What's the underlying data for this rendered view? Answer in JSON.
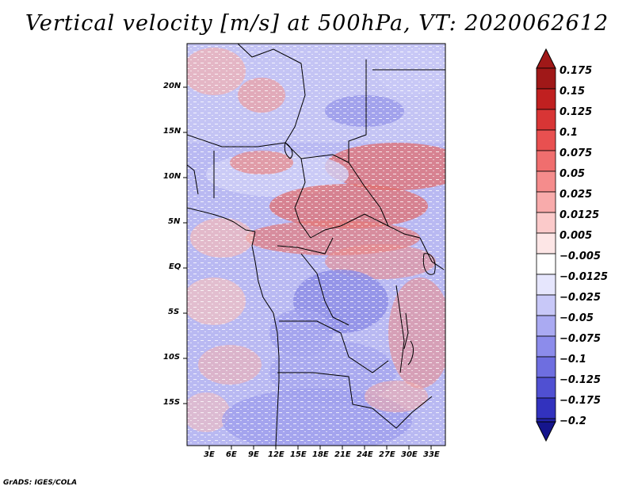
{
  "title": "Vertical velocity [m/s] at 500hPa, VT: 2020062612",
  "credit": "GrADS: IGES/COLA",
  "lat_labels": [
    "20N",
    "15N",
    "10N",
    "5N",
    "EQ",
    "5S",
    "10S",
    "15S"
  ],
  "lon_labels": [
    "3E",
    "6E",
    "9E",
    "12E",
    "15E",
    "18E",
    "21E",
    "24E",
    "27E",
    "30E",
    "33E"
  ],
  "colorbar": {
    "labels": [
      "0.175",
      "0.15",
      "0.125",
      "0.1",
      "0.075",
      "0.05",
      "0.025",
      "0.0125",
      "0.005",
      "−0.005",
      "−0.0125",
      "−0.025",
      "−0.05",
      "−0.075",
      "−0.1",
      "−0.125",
      "−0.175",
      "−0.2"
    ],
    "colors": [
      "#a01818",
      "#c02020",
      "#d83535",
      "#e85050",
      "#f06e6e",
      "#f58c8c",
      "#f8abab",
      "#fbcaca",
      "#fde6e6",
      "#ffffff",
      "#e6e6fd",
      "#c8c8f8",
      "#aaaaf2",
      "#8c8ceb",
      "#6e6ee0",
      "#5050d2",
      "#3232be",
      "#2323a8",
      "#15158c"
    ]
  }
}
